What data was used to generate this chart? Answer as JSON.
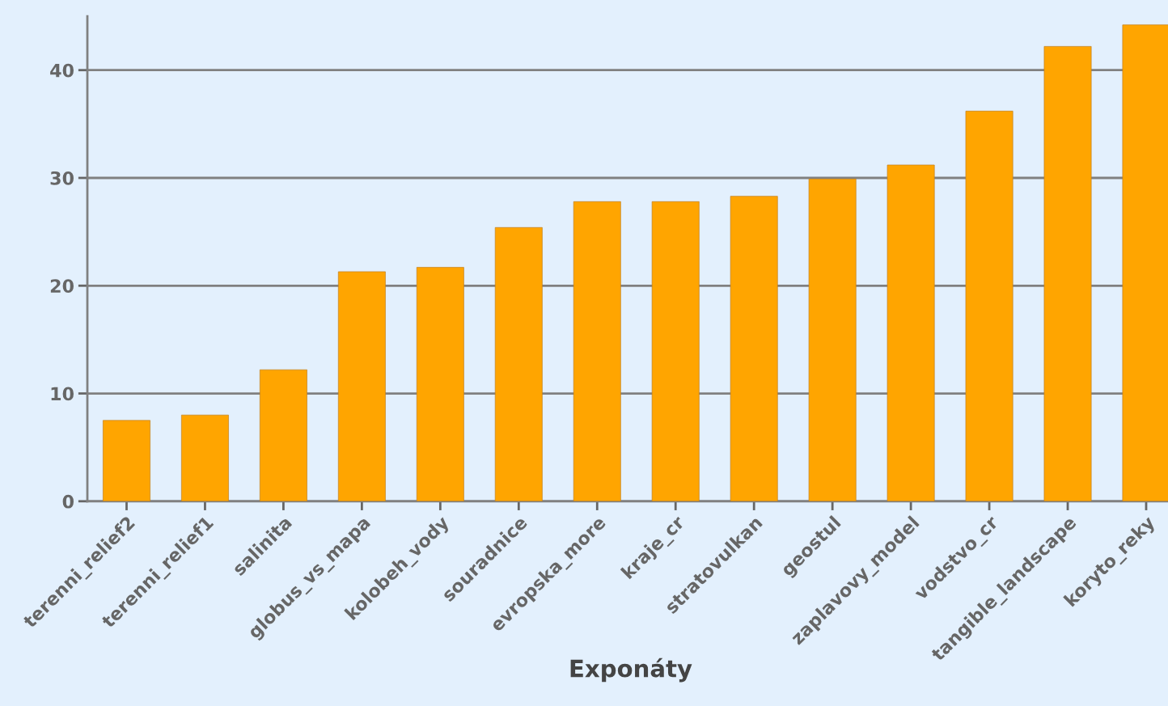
{
  "chart_data": {
    "type": "bar",
    "xlabel": "Exponáty",
    "categories": [
      "terenni_relief2",
      "terenni_relief1",
      "salinita",
      "globus_vs_mapa",
      "kolobeh_vody",
      "souradnice",
      "evropska_more",
      "kraje_cr",
      "stratovulkan",
      "geostul",
      "zaplavovy_model",
      "vodstvo_cr",
      "tangible_landscape",
      "koryto_reky"
    ],
    "values": [
      7.5,
      8.0,
      12.2,
      21.3,
      21.7,
      25.4,
      27.8,
      27.8,
      28.3,
      29.9,
      31.2,
      36.2,
      42.2,
      44.2
    ],
    "color": "#ffa500",
    "ylim": [
      0,
      45
    ],
    "yticks": [
      0,
      10,
      20,
      30,
      40
    ],
    "grid": "y",
    "legend": false
  }
}
